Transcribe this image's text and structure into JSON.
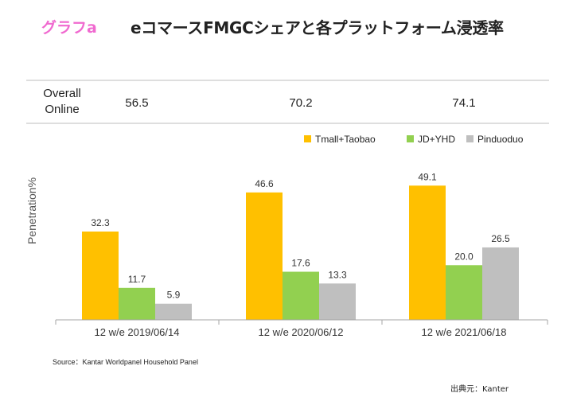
{
  "header": {
    "figure_label": "グラフa",
    "title": "eコマースFMGCシェアと各プラットフォーム浸透率"
  },
  "overall_online": {
    "label_line1": "Overall",
    "label_line2": "Online",
    "values": [
      "56.5",
      "70.2",
      "74.1"
    ]
  },
  "chart_data": {
    "type": "bar",
    "categories": [
      "12 w/e 2019/06/14",
      "12 w/e 2020/06/12",
      "12 w/e 2021/06/18"
    ],
    "series": [
      {
        "name": "Tmall+Taobao",
        "color": "#ffc000",
        "values": [
          32.3,
          46.6,
          49.1
        ]
      },
      {
        "name": "JD+YHD",
        "color": "#92d050",
        "values": [
          11.7,
          17.6,
          20.0
        ]
      },
      {
        "name": "Pinduoduo",
        "color": "#bfbfbf",
        "values": [
          5.9,
          13.3,
          26.5
        ]
      }
    ],
    "value_labels": [
      [
        "32.3",
        "11.7",
        "5.9"
      ],
      [
        "46.6",
        "17.6",
        "13.3"
      ],
      [
        "49.1",
        "20.0",
        "26.5"
      ]
    ],
    "ylabel": "Penetration%",
    "ylim": [
      0,
      55
    ],
    "grid": false,
    "legend_position": "top-right"
  },
  "footer": {
    "source": "Source：Kantar Worldpanel Household Panel",
    "credit": "出典元：Kanter"
  }
}
